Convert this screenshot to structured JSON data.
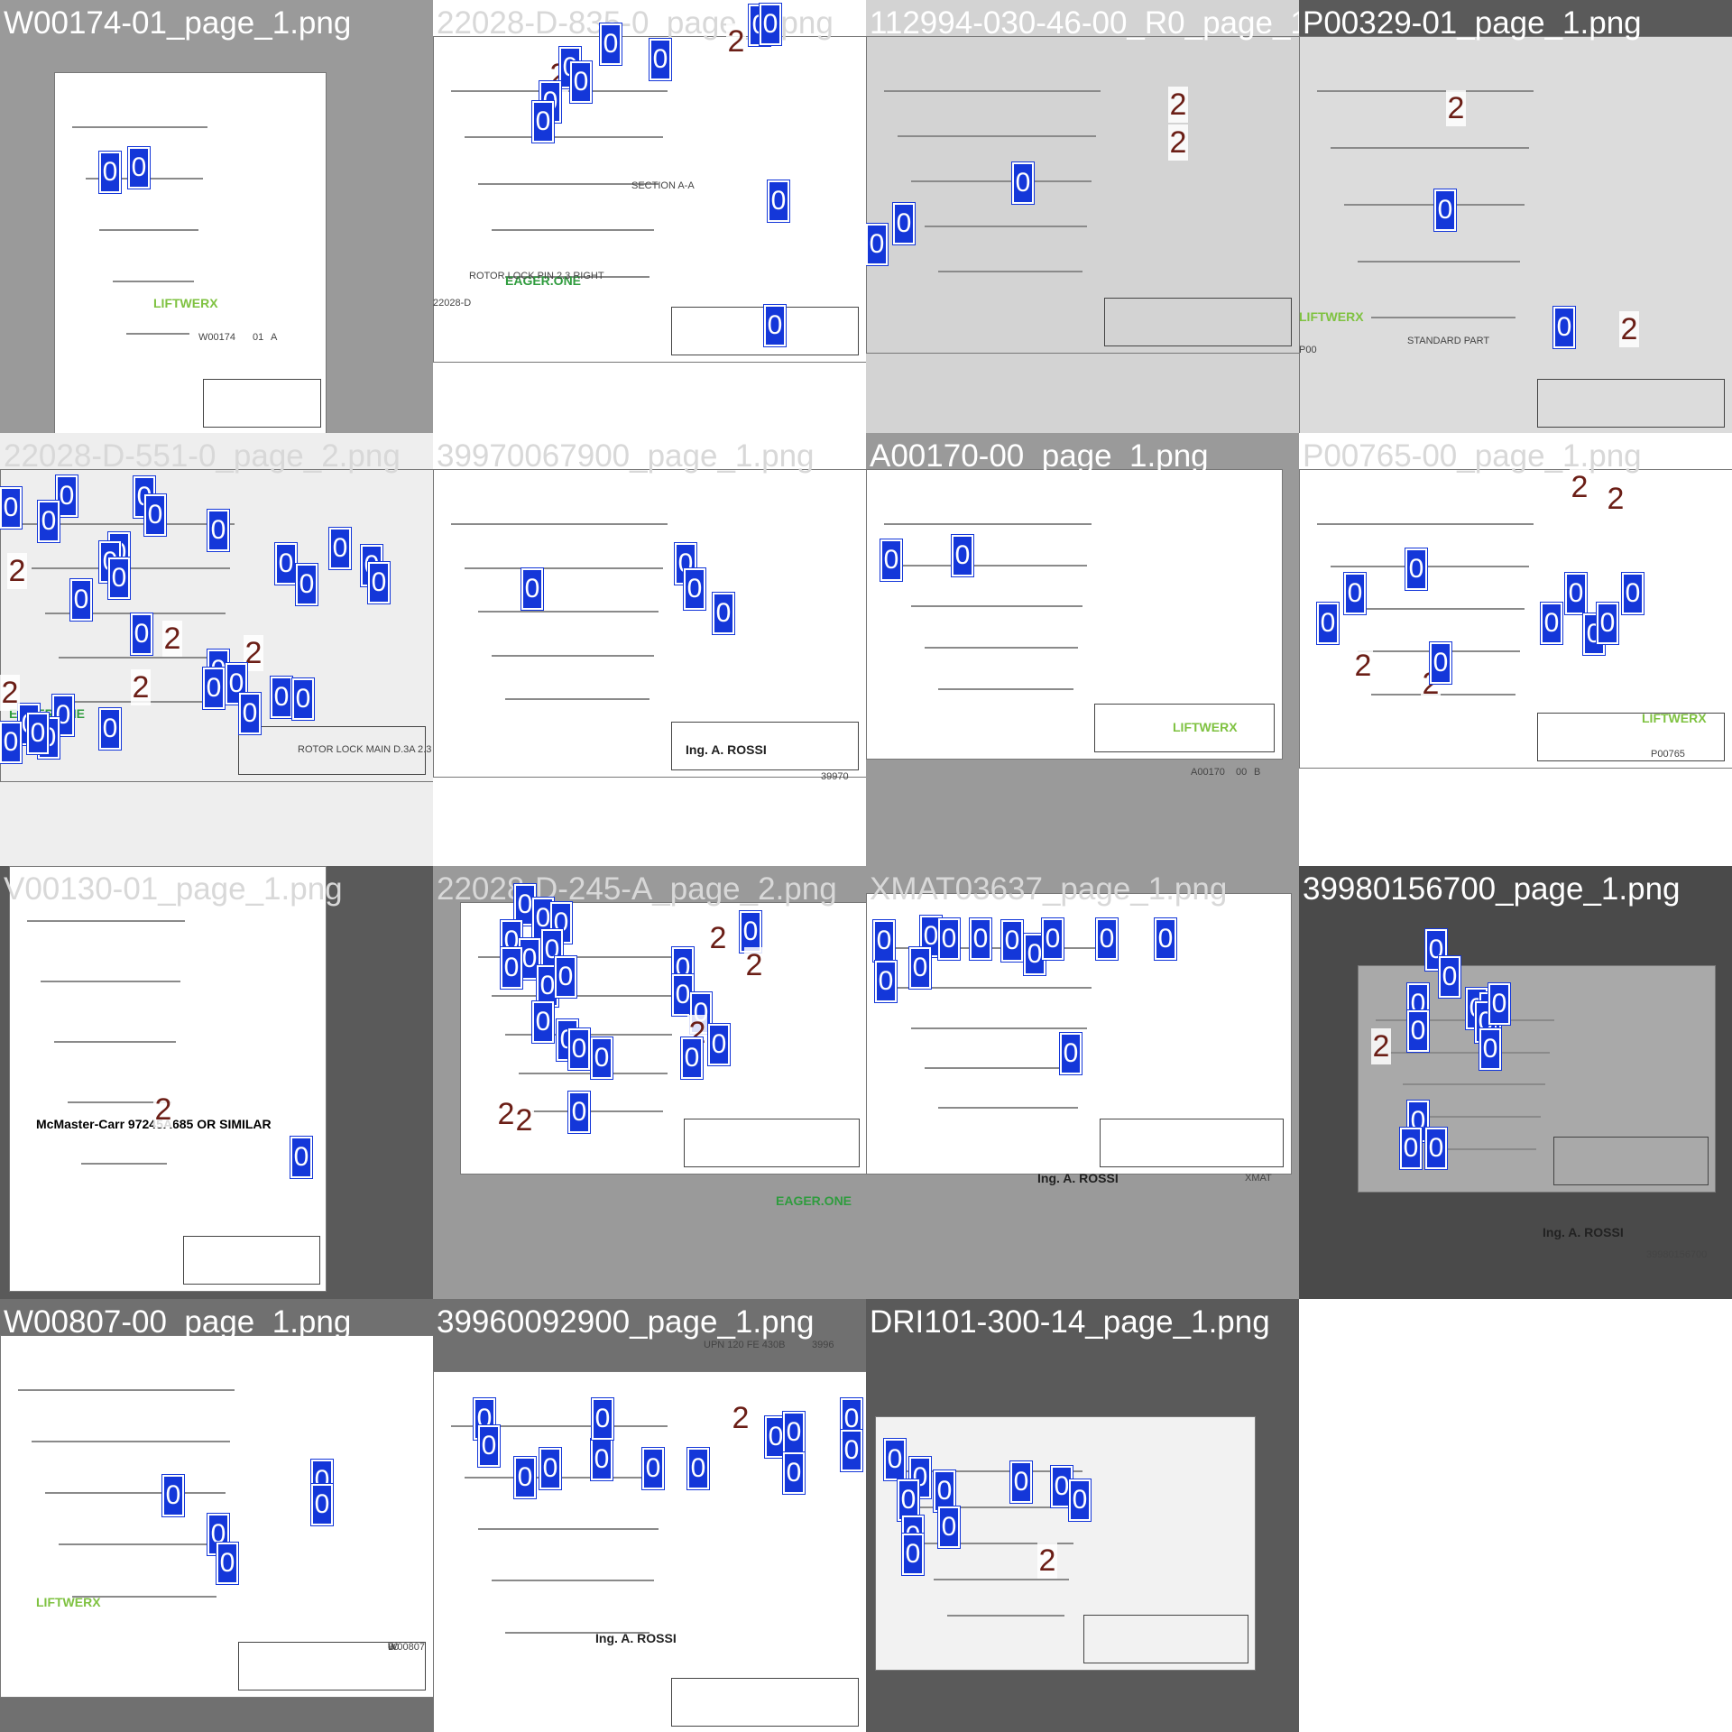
{
  "tiles": [
    {
      "title": "W00174-01_page_1.png",
      "bg": "#ffffff",
      "title_color": "#ffffff",
      "page_color": "#9a9a9a",
      "sheet_color": "#ffffff",
      "brand": "LIFTWERX",
      "brand_color": "#7fc241",
      "texts": [
        "W00174",
        "01",
        "A"
      ],
      "markers": []
    },
    {
      "title": "22028-D-835-0_page_1.png",
      "bg": "#ffffff",
      "title_color": "#d8d8d8",
      "page_color": "#ffffff",
      "sheet_color": "#ffffff",
      "brand": "EAGER.ONE",
      "brand_color": "#2f9c3e",
      "texts": [
        "ROTOR LOCK PIN 2.3 RIGHT",
        "SECTION A-A",
        "22028-D"
      ],
      "markers": []
    },
    {
      "title": "112994-030-46-00_R0_page_1.png",
      "bg": "#d8d8d8",
      "title_color": "#ffffff",
      "page_color": "#d3d3d3",
      "sheet_color": "#d3d3d3",
      "brand": "",
      "brand_color": "#000000",
      "texts": [],
      "markers": []
    },
    {
      "title": "P00329-01_page_1.png",
      "bg": "#dcdcdc",
      "title_color": "#ffffff",
      "page_color": "#5a5a5a",
      "sheet_color": "#dcdcdc",
      "brand": "LIFTWERX",
      "brand_color": "#7fc241",
      "texts": [
        "STANDARD PART",
        "P00"
      ],
      "markers": []
    },
    {
      "title": "22028-D-551-0_page_2.png",
      "bg": "#eeeeee",
      "title_color": "#d8d8d8",
      "page_color": "#eeeeee",
      "sheet_color": "#eeeeee",
      "brand": "EAGER.ONE",
      "brand_color": "#2f9c3e",
      "texts": [
        "ROTOR LOCK MAIN D.3A 2.3"
      ],
      "markers": []
    },
    {
      "title": "39970067900_page_1.png",
      "bg": "#ffffff",
      "title_color": "#d8d8d8",
      "page_color": "#ffffff",
      "sheet_color": "#ffffff",
      "brand": "Ing. A. ROSSI",
      "brand_color": "#222222",
      "texts": [
        "39970"
      ],
      "markers": []
    },
    {
      "title": "A00170-00_page_1.png",
      "bg": "#ffffff",
      "title_color": "#ffffff",
      "page_color": "#9a9a9a",
      "sheet_color": "#ffffff",
      "brand": "LIFTWERX",
      "brand_color": "#7fc241",
      "texts": [
        "A00170",
        "00",
        "B"
      ],
      "markers": []
    },
    {
      "title": "P00765-00_page_1.png",
      "bg": "#ffffff",
      "title_color": "#d8d8d8",
      "page_color": "#ffffff",
      "sheet_color": "#ffffff",
      "brand": "LIFTWERX",
      "brand_color": "#7fc241",
      "texts": [
        "P00765"
      ],
      "markers": []
    },
    {
      "title": "V00130-01_page_1.png",
      "bg": "#ffffff",
      "title_color": "#d8d8d8",
      "page_color": "#5a5a5a",
      "sheet_color": "#ffffff",
      "brand": "McMaster-Carr 97245A685 OR SIMILAR",
      "brand_color": "#000000",
      "texts": [],
      "markers": []
    },
    {
      "title": "22028-D-245-A_page_2.png",
      "bg": "#ffffff",
      "title_color": "#d8d8d8",
      "page_color": "#9a9a9a",
      "sheet_color": "#ffffff",
      "brand": "EAGER.ONE",
      "brand_color": "#2f9c3e",
      "texts": [],
      "markers": []
    },
    {
      "title": "XMAT03637_page_1.png",
      "bg": "#ffffff",
      "title_color": "#d8d8d8",
      "page_color": "#9a9a9a",
      "sheet_color": "#ffffff",
      "brand": "Ing. A. ROSSI",
      "brand_color": "#222222",
      "texts": [
        "XMAT"
      ],
      "markers": []
    },
    {
      "title": "39980156700_page_1.png",
      "bg": "#4a4a4a",
      "title_color": "#ffffff",
      "page_color": "#4a4a4a",
      "sheet_color": "#a9a9a9",
      "brand": "Ing. A. ROSSI",
      "brand_color": "#222222",
      "texts": [
        "39980156700"
      ],
      "markers": []
    },
    {
      "title": "W00807-00_page_1.png",
      "bg": "#ffffff",
      "title_color": "#ffffff",
      "page_color": "#707070",
      "sheet_color": "#ffffff",
      "brand": "LIFTWERX",
      "brand_color": "#7fc241",
      "texts": [
        "W00807",
        "00",
        "B"
      ],
      "markers": []
    },
    {
      "title": "39960092900_page_1.png",
      "bg": "#ffffff",
      "title_color": "#ffffff",
      "page_color": "#707070",
      "sheet_color": "#ffffff",
      "brand": "Ing. A. ROSSI",
      "brand_color": "#222222",
      "texts": [
        "UPN 120 FE 430B",
        "3996"
      ],
      "markers": []
    },
    {
      "title": "DRI101-300-14_page_1.png",
      "bg": "#ffffff",
      "title_color": "#ffffff",
      "page_color": "#5a5a5a",
      "sheet_color": "#f2f2f2",
      "brand": "",
      "brand_color": "#000000",
      "texts": [],
      "markers": []
    }
  ],
  "marker_labels": {
    "zero": "0",
    "two": "2"
  },
  "colors": {
    "marker_zero_bg": "#1437d9",
    "marker_two_text": "#6b1e16",
    "empty_cell": "#ffffff"
  }
}
